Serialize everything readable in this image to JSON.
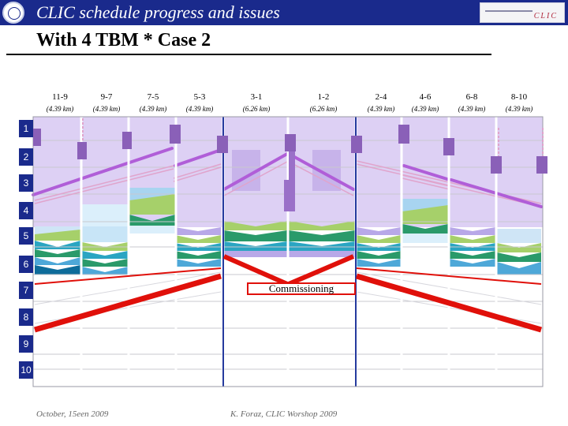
{
  "header": {
    "title": "CLIC schedule progress and issues",
    "right_logo_text": "CLIC"
  },
  "subtitle": "With 4 TBM * Case 2",
  "colors": {
    "banner": "#1a2a8c",
    "lavender": "#ddd0f4",
    "tbm_path": "#b05ed8",
    "commissioning": "#e0100a",
    "mid_blue": "#253a9e"
  },
  "columns": [
    {
      "name": "11-9",
      "length": "(4.39 km)"
    },
    {
      "name": "9-7",
      "length": "(4.39 km)"
    },
    {
      "name": "7-5",
      "length": "(4.39 km)"
    },
    {
      "name": "5-3",
      "length": "(4.39 km)"
    },
    {
      "name": "3-1",
      "length": "(6.26 km)"
    },
    {
      "name": "1-2",
      "length": "(6.26 km)"
    },
    {
      "name": "2-4",
      "length": "(4.39 km)"
    },
    {
      "name": "4-6",
      "length": "(4.39 km)"
    },
    {
      "name": "6-8",
      "length": "(4.39 km)"
    },
    {
      "name": "8-10",
      "length": "(4.39 km)"
    }
  ],
  "rows": [
    "1",
    "2",
    "3",
    "4",
    "5",
    "6",
    "7",
    "8",
    "9",
    "10"
  ],
  "commissioning_label": "Commissioning",
  "footer": {
    "date": "October, 15een 2009",
    "author": "K. Foraz, CLIC Worshop 2009"
  }
}
